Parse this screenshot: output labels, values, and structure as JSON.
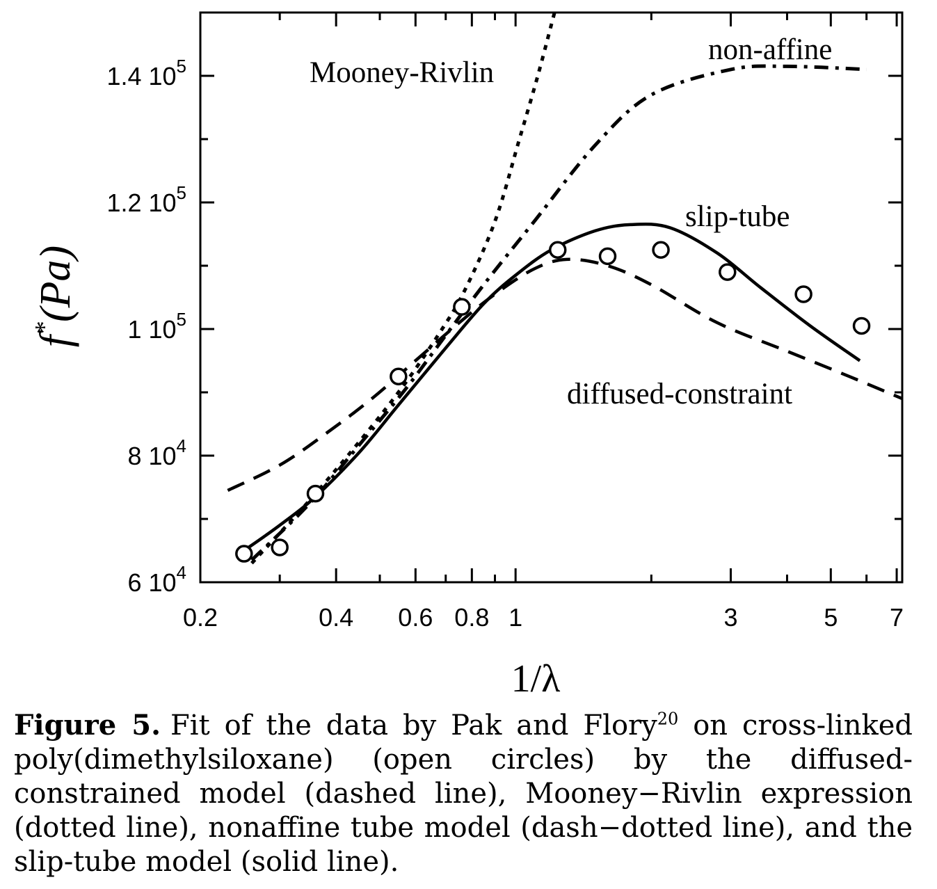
{
  "chart_data": {
    "type": "line",
    "xlabel": "1/λ",
    "ylabel_main": "f",
    "ylabel_sup": "*",
    "ylabel_unit": "(Pa)",
    "x_scale": "log",
    "xlim": [
      0.2,
      7.2
    ],
    "ylim": [
      60000,
      150000
    ],
    "x_ticks": [
      {
        "value": 0.2,
        "label": "0.2"
      },
      {
        "value": 0.4,
        "label": "0.4"
      },
      {
        "value": 0.6,
        "label": "0.6"
      },
      {
        "value": 0.8,
        "label": "0.8"
      },
      {
        "value": 1,
        "label": "1"
      },
      {
        "value": 3,
        "label": "3"
      },
      {
        "value": 5,
        "label": "5"
      },
      {
        "value": 7,
        "label": "7"
      }
    ],
    "x_minor_ticks": [
      0.3,
      0.5,
      0.7,
      0.9,
      2,
      4,
      6
    ],
    "y_ticks": [
      {
        "value": 60000,
        "mant": "6 10",
        "exp": "4"
      },
      {
        "value": 80000,
        "mant": "8 10",
        "exp": "4"
      },
      {
        "value": 100000,
        "mant": "1 10",
        "exp": "5"
      },
      {
        "value": 120000,
        "mant": "1.2 10",
        "exp": "5"
      },
      {
        "value": 140000,
        "mant": "1.4 10",
        "exp": "5"
      }
    ],
    "y_minor_ticks": [
      70000,
      90000,
      110000,
      130000,
      150000
    ],
    "grid": false,
    "data_points": {
      "name": "Pak and Flory data",
      "x": [
        0.25,
        0.3,
        0.36,
        0.55,
        0.76,
        1.24,
        1.6,
        2.1,
        2.95,
        4.35,
        5.85
      ],
      "y": [
        64500,
        65500,
        74000,
        92500,
        103500,
        112500,
        111500,
        112500,
        109000,
        105500,
        100500
      ]
    },
    "series": [
      {
        "name": "Mooney-Rivlin",
        "style": "dotted",
        "x": [
          0.26,
          0.35,
          0.46,
          0.57,
          0.68,
          0.77,
          0.9,
          1.02,
          1.12,
          1.22
        ],
        "y": [
          63000,
          73000,
          83000,
          91500,
          99500,
          106000,
          117000,
          130000,
          140000,
          150000
        ]
      },
      {
        "name": "non-affine",
        "style": "dash-dot",
        "x": [
          0.26,
          0.35,
          0.46,
          0.57,
          0.7,
          0.85,
          1.1,
          1.5,
          2.0,
          3.0,
          4.0,
          6.0
        ],
        "y": [
          63500,
          72500,
          82500,
          90500,
          99000,
          107000,
          117000,
          129000,
          137000,
          141000,
          141500,
          141000
        ]
      },
      {
        "name": "slip-tube",
        "style": "solid",
        "x": [
          0.25,
          0.3,
          0.36,
          0.45,
          0.55,
          0.7,
          0.85,
          1.0,
          1.2,
          1.5,
          1.8,
          2.2,
          2.8,
          3.5,
          4.5,
          5.8
        ],
        "y": [
          65000,
          69000,
          73500,
          80500,
          88000,
          97000,
          104000,
          108500,
          112500,
          115500,
          116500,
          116000,
          112000,
          106500,
          100500,
          95000
        ]
      },
      {
        "name": "diffused-constraint",
        "style": "dashed",
        "x": [
          0.23,
          0.3,
          0.38,
          0.48,
          0.6,
          0.75,
          0.9,
          1.1,
          1.3,
          1.6,
          2.0,
          2.8,
          4.0,
          5.5,
          7.2
        ],
        "y": [
          74500,
          78500,
          83500,
          89000,
          95000,
          101000,
          105500,
          109500,
          111000,
          110000,
          107000,
          101000,
          96500,
          92500,
          89000
        ]
      }
    ],
    "annotations": {
      "mooney": "Mooney-Rivlin",
      "nonaffine": "non-affine",
      "sliptube": "slip-tube",
      "diffused": "diffused-constraint"
    }
  },
  "caption": {
    "label": "Figure 5.",
    "text_before_ref": "Fit of the data by Pak and Flory",
    "ref": "20",
    "text_after_ref": " on cross-linked poly(dimethylsiloxane) (open circles) by the diffused-constrained model (dashed line), Mooney−Rivlin expression (dotted line), nonaffine tube model (dash−dotted line), and the slip-tube model (solid line)."
  }
}
